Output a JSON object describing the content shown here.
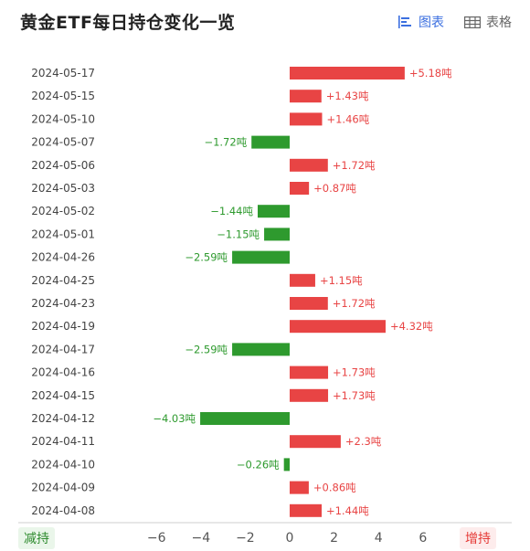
{
  "header": {
    "title": "黄金ETF每日持仓变化一览",
    "tab_chart": "图表",
    "tab_table": "表格"
  },
  "footer": {
    "left_label": "减持",
    "right_label": "增持"
  },
  "colors": {
    "positive": "#e84444",
    "negative": "#2e9a2e",
    "accent": "#3b6fe0"
  },
  "chart_data": {
    "type": "bar",
    "orientation": "horizontal",
    "title": "黄金ETF每日持仓变化一览",
    "unit": "吨",
    "categories": [
      "2024-05-17",
      "2024-05-15",
      "2024-05-10",
      "2024-05-07",
      "2024-05-06",
      "2024-05-03",
      "2024-05-02",
      "2024-05-01",
      "2024-04-26",
      "2024-04-25",
      "2024-04-23",
      "2024-04-19",
      "2024-04-17",
      "2024-04-16",
      "2024-04-15",
      "2024-04-12",
      "2024-04-11",
      "2024-04-10",
      "2024-04-09",
      "2024-04-08"
    ],
    "values": [
      5.18,
      1.43,
      1.46,
      -1.72,
      1.72,
      0.87,
      -1.44,
      -1.15,
      -2.59,
      1.15,
      1.72,
      4.32,
      -2.59,
      1.73,
      1.73,
      -4.03,
      2.3,
      -0.26,
      0.86,
      1.44
    ],
    "labels": [
      "+5.18吨",
      "+1.43吨",
      "+1.46吨",
      "−1.72吨",
      "+1.72吨",
      "+0.87吨",
      "−1.44吨",
      "−1.15吨",
      "−2.59吨",
      "+1.15吨",
      "+1.72吨",
      "+4.32吨",
      "−2.59吨",
      "+1.73吨",
      "+1.73吨",
      "−4.03吨",
      "+2.3吨",
      "−0.26吨",
      "+0.86吨",
      "+1.44吨"
    ],
    "xticks": [
      -6,
      -4,
      -2,
      0,
      2,
      4,
      6
    ],
    "xtick_labels": [
      "−6",
      "−4",
      "−2",
      "0",
      "2",
      "4",
      "6"
    ],
    "xlim": [
      -6.5,
      6.5
    ],
    "grid": false
  }
}
